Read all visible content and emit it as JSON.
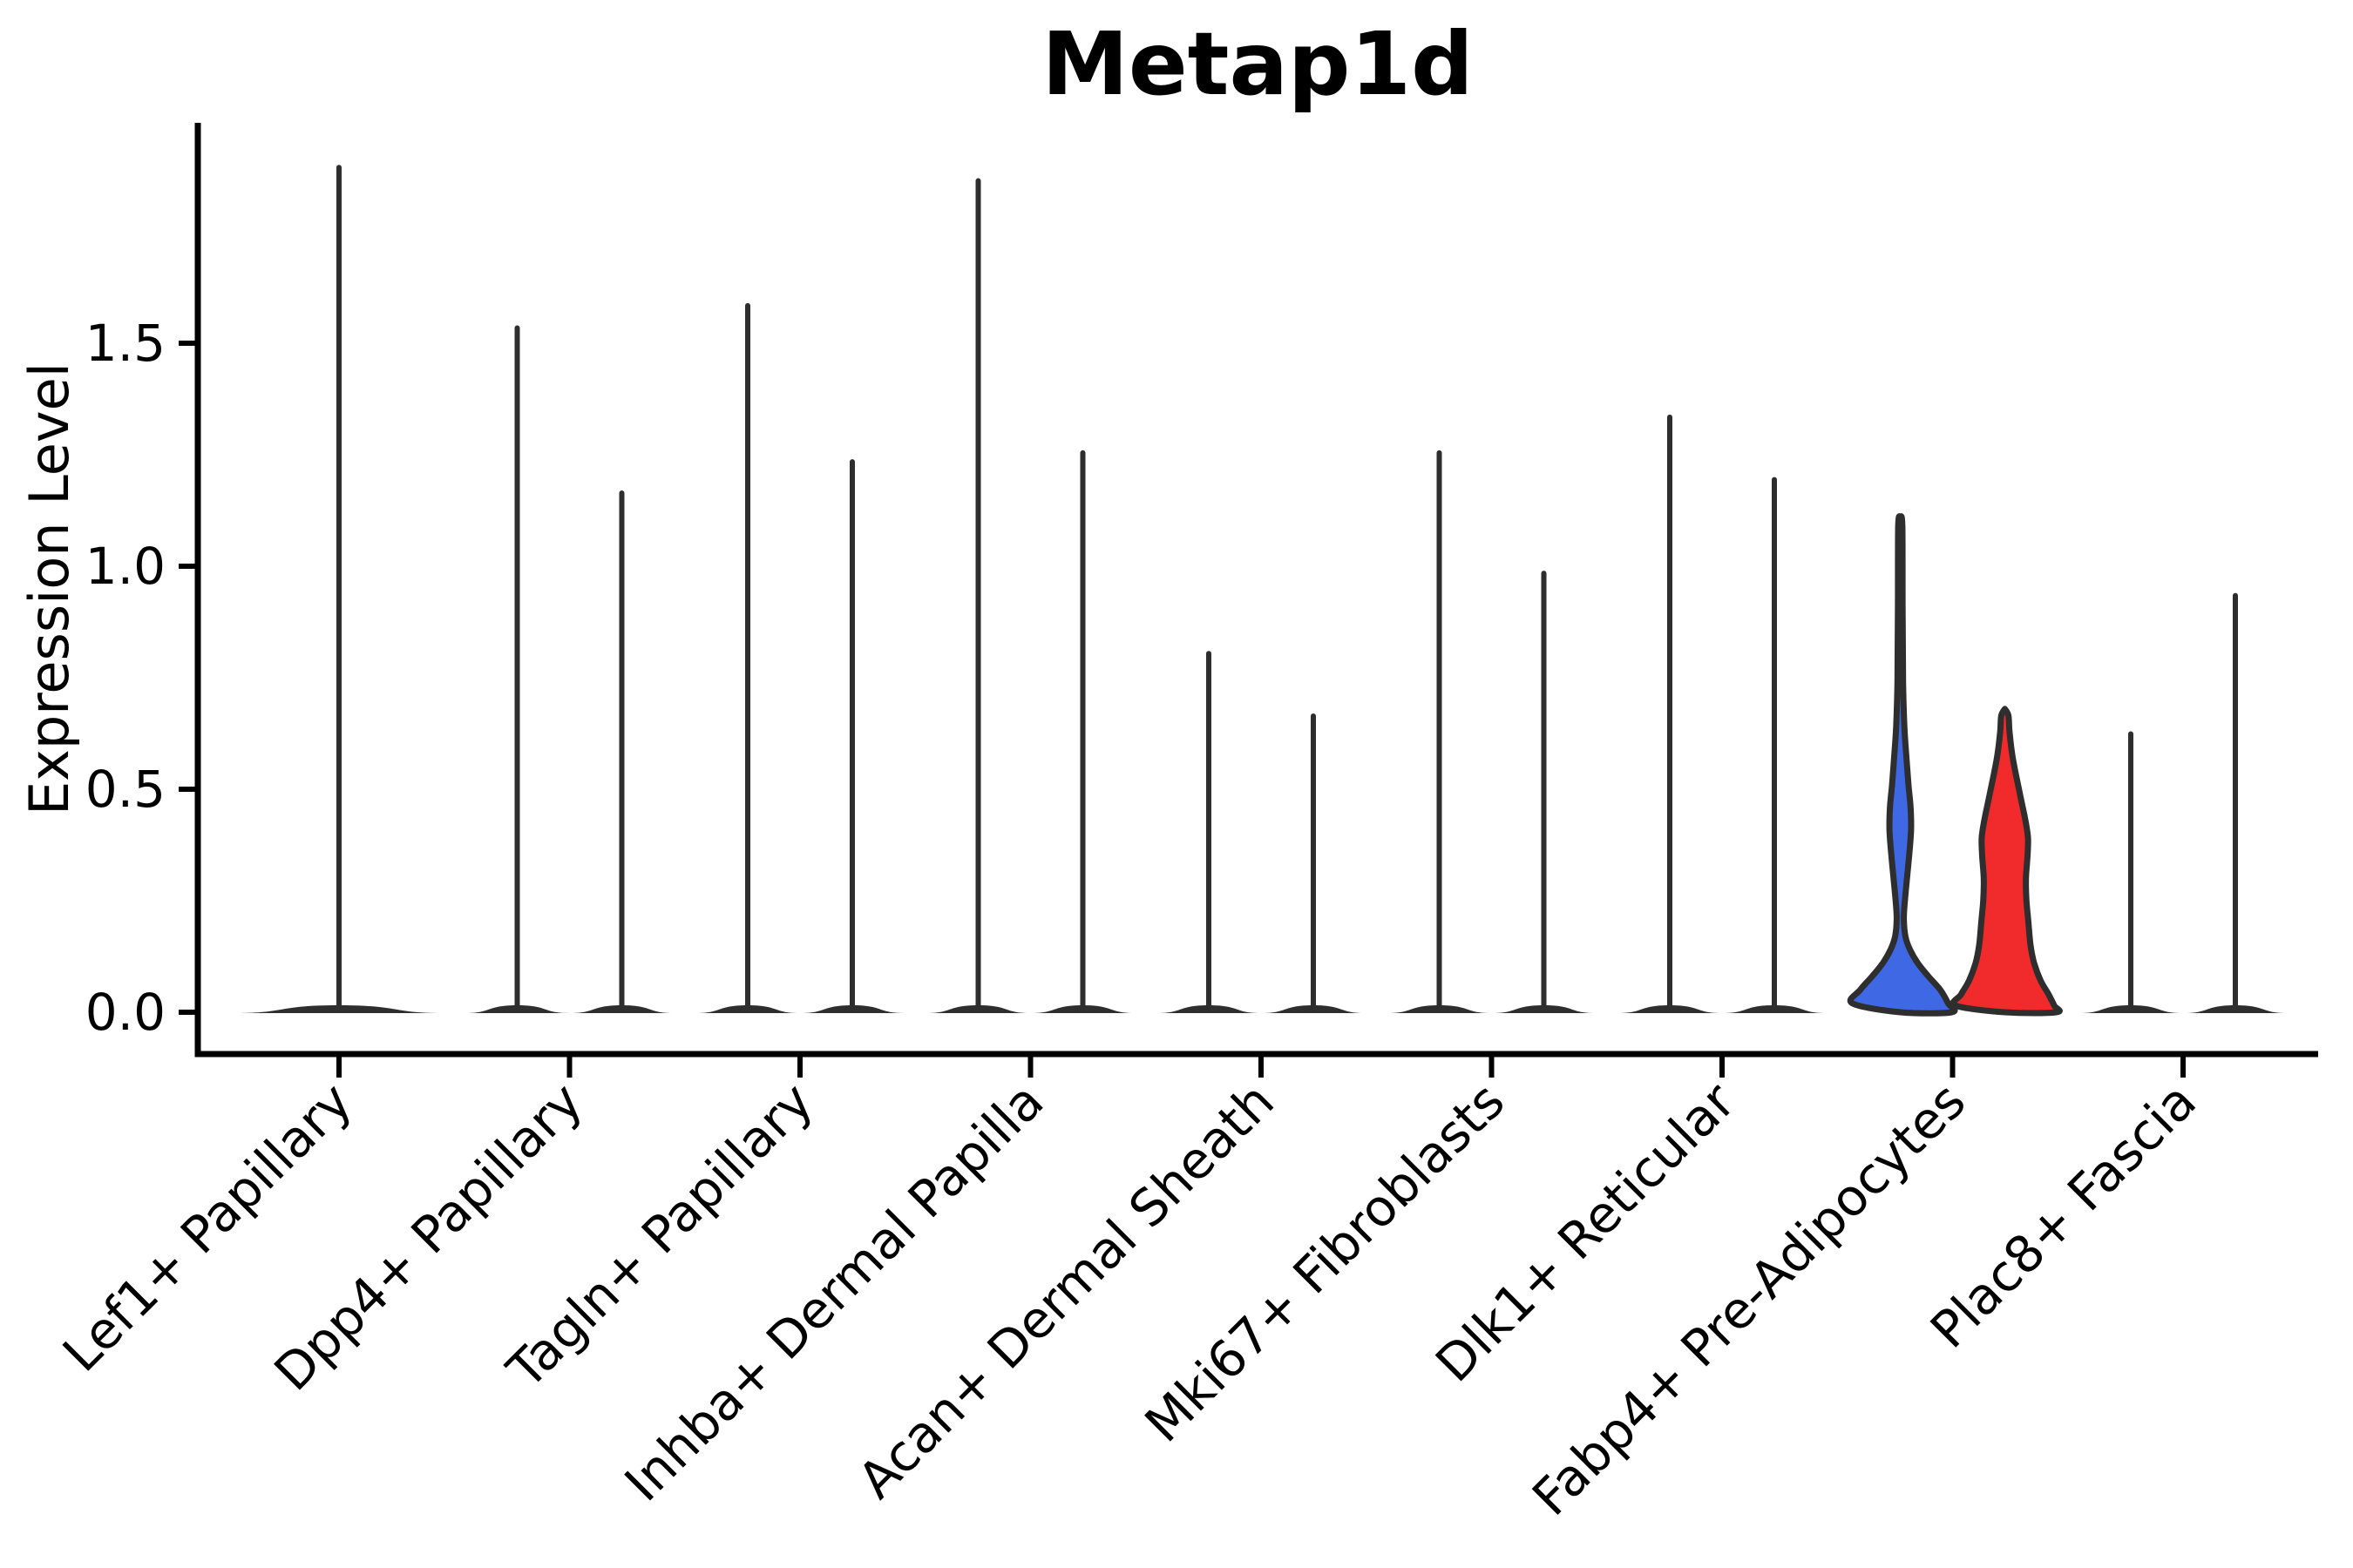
{
  "title": "Metap1d",
  "axes": {
    "ylabel": "Expression Level",
    "xlabel": "",
    "ytick_labels": [
      "0.0",
      "0.5",
      "1.0",
      "1.5"
    ]
  },
  "colors": {
    "violin_outline": "#2e2e2e",
    "axis_line": "#000000",
    "highlight_blue": "#3f69e4",
    "highlight_red": "#f12b2b",
    "background": "#ffffff"
  },
  "chart_data": {
    "type": "violin",
    "title": "Metap1d",
    "xlabel": "",
    "ylabel": "Expression Level",
    "ylim": [
      -0.09,
      1.99
    ],
    "yticks": [
      0,
      0.5,
      1.0,
      1.5
    ],
    "grid": "off",
    "legend_position": "none",
    "categories": [
      "Lef1+ Papillary",
      "Dpp4+ Papillary",
      "Tagln+ Papillary",
      "Inhba+ Dermal Papilla",
      "Acan+ Dermal Sheath",
      "Mki67+ Fibroblasts",
      "Dlk1+ Reticular",
      "Fabp4+ Pre-Adipocytes",
      "Plac8+ Fascia"
    ],
    "violin_description": "Each category shows narrow spike violins collapsed at 0 expression; only Fabp4+ Pre-Adipocytes pair is filled (blue left, red right).",
    "violins": [
      {
        "category": "Lef1+ Papillary",
        "cells": [
          {
            "slot": "center",
            "max_expression": 1.9,
            "fill": "none"
          }
        ]
      },
      {
        "category": "Dpp4+ Papillary",
        "cells": [
          {
            "slot": "left",
            "max_expression": 1.54,
            "fill": "none"
          },
          {
            "slot": "right",
            "max_expression": 1.17,
            "fill": "none"
          }
        ]
      },
      {
        "category": "Tagln+ Papillary",
        "cells": [
          {
            "slot": "left",
            "max_expression": 1.59,
            "fill": "none"
          },
          {
            "slot": "right",
            "max_expression": 1.24,
            "fill": "none"
          }
        ]
      },
      {
        "category": "Inhba+ Dermal Papilla",
        "cells": [
          {
            "slot": "left",
            "max_expression": 1.87,
            "fill": "none"
          },
          {
            "slot": "right",
            "max_expression": 1.26,
            "fill": "none"
          }
        ]
      },
      {
        "category": "Acan+ Dermal Sheath",
        "cells": [
          {
            "slot": "left",
            "max_expression": 0.81,
            "fill": "none"
          },
          {
            "slot": "right",
            "max_expression": 0.67,
            "fill": "none"
          }
        ]
      },
      {
        "category": "Mki67+ Fibroblasts",
        "cells": [
          {
            "slot": "left",
            "max_expression": 1.26,
            "fill": "none"
          },
          {
            "slot": "right",
            "max_expression": 0.99,
            "fill": "none"
          }
        ]
      },
      {
        "category": "Dlk1+ Reticular",
        "cells": [
          {
            "slot": "left",
            "max_expression": 1.34,
            "fill": "none"
          },
          {
            "slot": "right",
            "max_expression": 1.2,
            "fill": "none"
          }
        ]
      },
      {
        "category": "Fabp4+ Pre-Adipocytes",
        "cells": [
          {
            "slot": "left",
            "max_expression": 1.11,
            "fill": "#3f69e4",
            "profile": [
              [
                1.11,
                0.0
              ],
              [
                1.09,
                0.04
              ],
              [
                0.9,
                0.045
              ],
              [
                0.74,
                0.055
              ],
              [
                0.64,
                0.08
              ],
              [
                0.57,
                0.12
              ],
              [
                0.51,
                0.16
              ],
              [
                0.46,
                0.2
              ],
              [
                0.41,
                0.21
              ],
              [
                0.36,
                0.18
              ],
              [
                0.3,
                0.13
              ],
              [
                0.25,
                0.09
              ],
              [
                0.21,
                0.07
              ],
              [
                0.17,
                0.1
              ],
              [
                0.14,
                0.19
              ],
              [
                0.11,
                0.34
              ],
              [
                0.08,
                0.55
              ],
              [
                0.05,
                0.78
              ],
              [
                0.02,
                0.93
              ],
              [
                0.0,
                1.0
              ]
            ]
          },
          {
            "slot": "right",
            "max_expression": 0.68,
            "fill": "#f12b2b",
            "profile": [
              [
                0.68,
                0.0
              ],
              [
                0.665,
                0.07
              ],
              [
                0.63,
                0.09
              ],
              [
                0.58,
                0.14
              ],
              [
                0.53,
                0.22
              ],
              [
                0.48,
                0.31
              ],
              [
                0.43,
                0.4
              ],
              [
                0.39,
                0.45
              ],
              [
                0.35,
                0.44
              ],
              [
                0.3,
                0.41
              ],
              [
                0.25,
                0.42
              ],
              [
                0.2,
                0.46
              ],
              [
                0.15,
                0.5
              ],
              [
                0.11,
                0.57
              ],
              [
                0.07,
                0.7
              ],
              [
                0.04,
                0.85
              ],
              [
                0.015,
                0.96
              ],
              [
                0.0,
                1.0
              ]
            ]
          }
        ]
      },
      {
        "category": "Plac8+ Fascia",
        "cells": [
          {
            "slot": "left",
            "max_expression": 0.63,
            "fill": "none"
          },
          {
            "slot": "right",
            "max_expression": 0.94,
            "fill": "none"
          }
        ]
      }
    ]
  }
}
